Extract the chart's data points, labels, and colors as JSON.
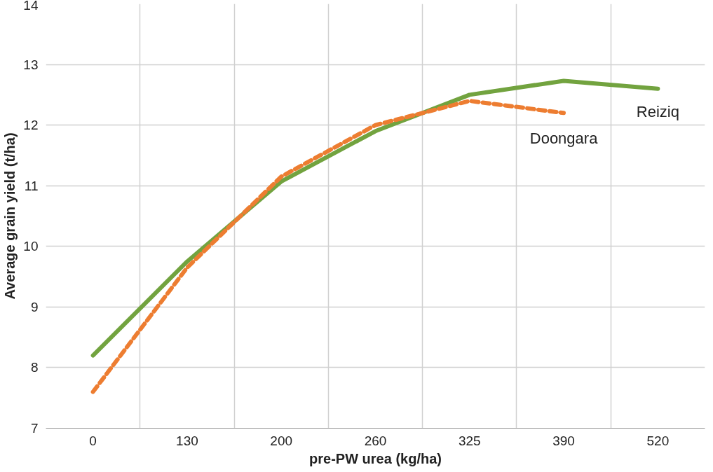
{
  "chart_data": {
    "type": "line",
    "xlabel": "pre-PW urea (kg/ha)",
    "ylabel": "Average grain yield (t/ha)",
    "categories": [
      "0",
      "130",
      "200",
      "260",
      "325",
      "390",
      "520"
    ],
    "series": [
      {
        "name": "Reiziq",
        "color": "#72a33f",
        "line_style": "solid",
        "values": [
          8.2,
          9.75,
          11.07,
          11.9,
          12.5,
          12.73,
          12.6
        ]
      },
      {
        "name": "Doongara",
        "color": "#ed7d31",
        "line_style": "dashed",
        "values": [
          7.6,
          9.65,
          11.15,
          12.0,
          12.4,
          12.2,
          null
        ]
      }
    ],
    "ylim": [
      7,
      14
    ],
    "yticks": [
      7,
      8,
      9,
      10,
      11,
      12,
      13,
      14
    ],
    "grid": true,
    "marker": "none"
  }
}
